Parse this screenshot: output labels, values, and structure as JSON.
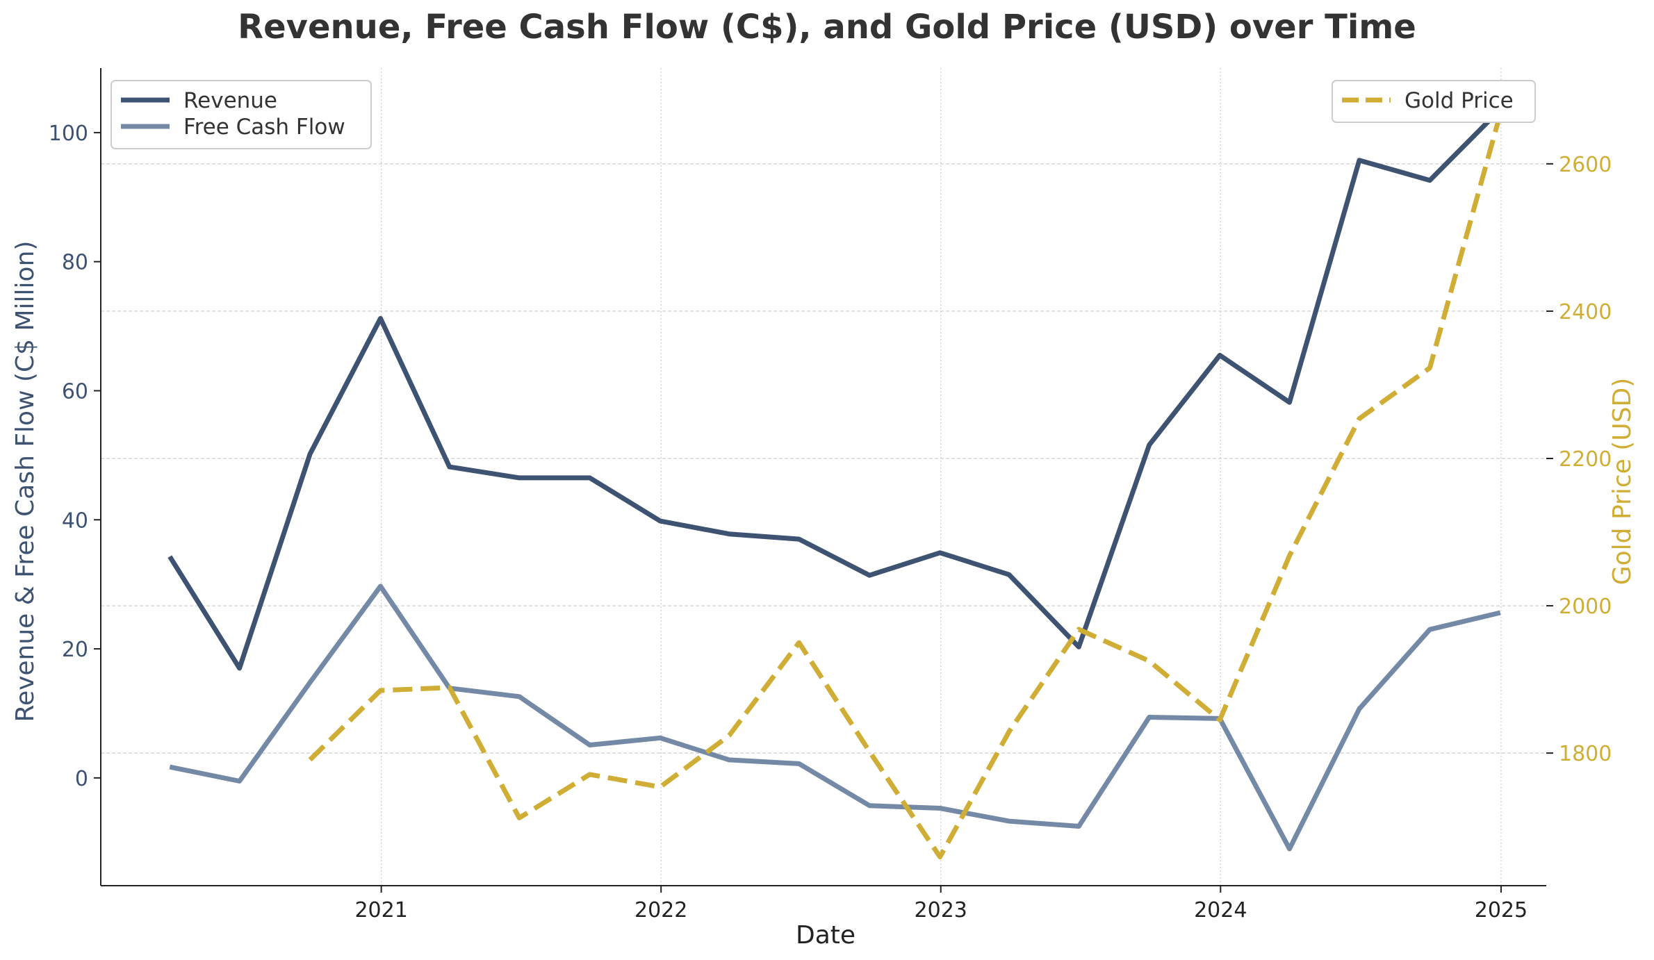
{
  "chart_data": {
    "type": "line",
    "title": "Revenue, Free Cash Flow (C$), and Gold Price (USD) over Time",
    "xlabel": "Date",
    "ylabel_left": "Revenue & Free Cash Flow (C$ Million)",
    "ylabel_right": "Gold Price (USD)",
    "x": [
      "2020-03-31",
      "2020-06-30",
      "2020-09-30",
      "2020-12-31",
      "2021-03-31",
      "2021-06-30",
      "2021-09-30",
      "2021-12-31",
      "2022-03-31",
      "2022-06-30",
      "2022-09-30",
      "2022-12-31",
      "2023-03-31",
      "2023-06-30",
      "2023-09-30",
      "2023-12-31",
      "2024-03-31",
      "2024-06-30",
      "2024-09-30",
      "2024-12-31"
    ],
    "x_ticks": [
      "2021",
      "2022",
      "2023",
      "2024",
      "2025"
    ],
    "x_range": [
      "2020-01-01",
      "2025-03-01"
    ],
    "ylim_left": [
      -16.7,
      110
    ],
    "yticks_left": [
      0,
      20,
      40,
      60,
      80,
      100
    ],
    "ylim_right": [
      1620,
      2730
    ],
    "yticks_right": [
      1800,
      2000,
      2200,
      2400,
      2600
    ],
    "grid": true,
    "series": [
      {
        "name": "Revenue",
        "axis": "left",
        "color": "#3d5371",
        "style": "solid",
        "values": [
          34.3,
          17.0,
          50.2,
          71.2,
          48.2,
          46.5,
          46.5,
          39.8,
          37.8,
          37.0,
          31.4,
          34.9,
          31.5,
          20.3,
          51.6,
          65.5,
          58.2,
          95.7,
          92.6,
          103.6
        ]
      },
      {
        "name": "Free Cash Flow",
        "axis": "left",
        "color": "#7489a6",
        "style": "solid",
        "values": [
          1.7,
          -0.5,
          14.8,
          29.7,
          13.9,
          12.6,
          5.1,
          6.2,
          2.8,
          2.2,
          -4.3,
          -4.7,
          -6.7,
          -7.5,
          9.4,
          9.2,
          -11.0,
          10.7,
          23.0,
          25.6
        ]
      },
      {
        "name": "Gold Price",
        "axis": "right",
        "color": "#d0ad35",
        "style": "dashed",
        "values": [
          null,
          null,
          1791,
          1885,
          1889,
          1712,
          1771,
          1754,
          1824,
          1950,
          1802,
          1659,
          1829,
          1968,
          1925,
          1845,
          2068,
          2254,
          2323,
          2668
        ]
      }
    ],
    "legend_left": [
      "Revenue",
      "Free Cash Flow"
    ],
    "legend_right": [
      "Gold Price"
    ],
    "legend_placement": [
      "top-left",
      "top-right"
    ]
  },
  "colors": {
    "left_axis": "#3d5371",
    "right_axis": "#d0ad35",
    "grid": "#cccccc",
    "title": "#333333"
  }
}
